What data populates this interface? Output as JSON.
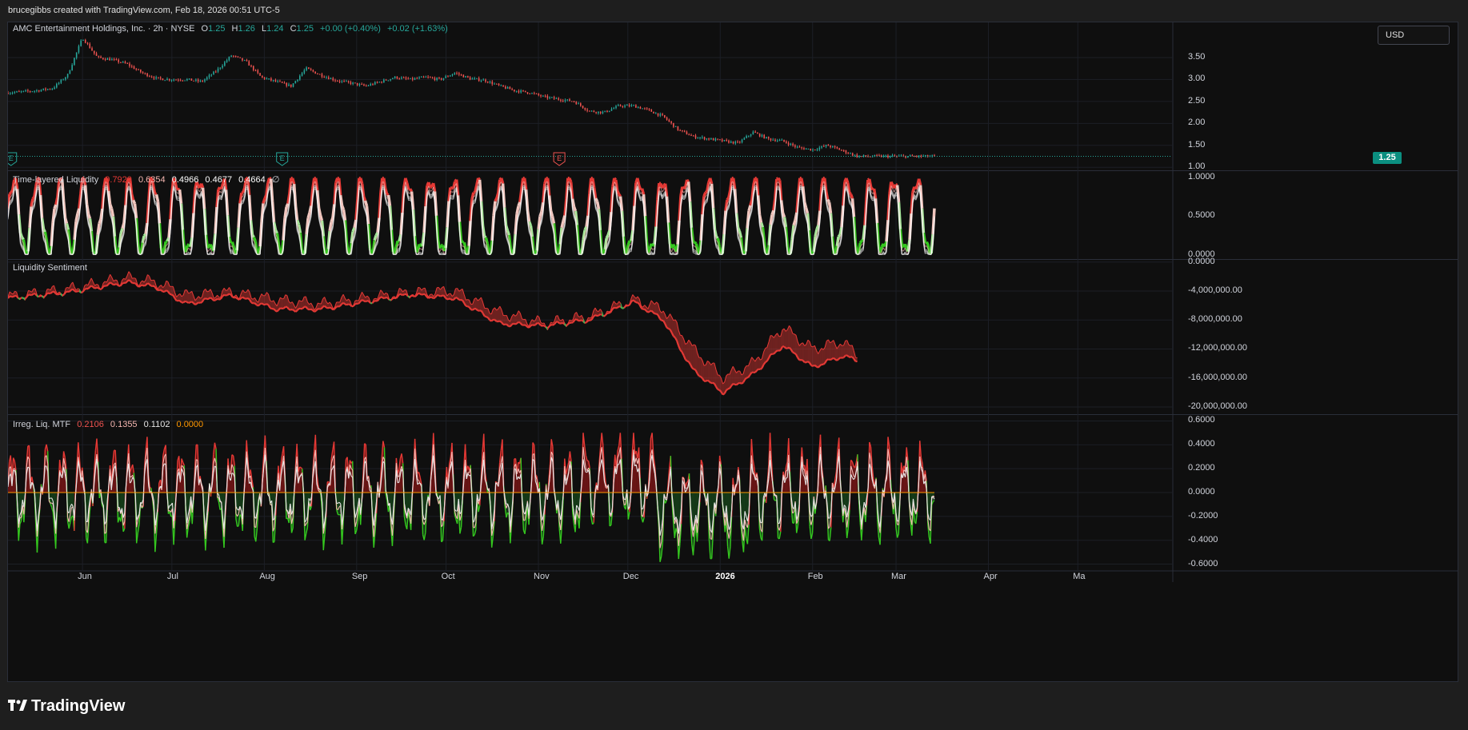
{
  "header": {
    "created_by": "brucegibbs created with TradingView.com, Feb 18, 2026 00:51 UTC-5"
  },
  "brand": {
    "logo_icon": "tradingview-logo-icon",
    "name": "TradingView"
  },
  "currency": "USD",
  "last_price_label": "1.25",
  "colors": {
    "up": "#26a69a",
    "down": "#ef5350",
    "red": "#e53935",
    "green": "#4caf50",
    "brightgreen": "#35c81f",
    "pale": "#e6e6e6",
    "zero": "#ff9800",
    "yellow": "#ffeb3b"
  },
  "price_legend": {
    "symbol": "AMC Entertainment Holdings, Inc. · 2h · NYSE",
    "o_key": "O",
    "o_val": "1.25",
    "h_key": "H",
    "h_val": "1.26",
    "l_key": "L",
    "l_val": "1.24",
    "c_key": "C",
    "c_val": "1.25",
    "change": "+0.00 (+0.40%)",
    "change2": "+0.02 (+1.63%)"
  },
  "tl_legend": {
    "name": "Time-layered Liquidity",
    "v1": "0.7920",
    "v2": "0.6354",
    "v3": "0.4966",
    "v4": "0.4677",
    "v5": "0.4664",
    "v6": "∅"
  },
  "ls_legend": {
    "name": "Liquidity Sentiment"
  },
  "ir_legend": {
    "name": "Irreg. Liq. MTF",
    "v1": "0.2106",
    "v2": "0.1355",
    "v3": "0.1102",
    "v4": "0.0000"
  },
  "earnings_markers": [
    "E",
    "E",
    "E"
  ],
  "chart_data": [
    {
      "type": "candlestick",
      "title": "AMC Entertainment Holdings, Inc. · 2h · NYSE",
      "x_ticks": [
        "Jun",
        "Jul",
        "Aug",
        "Sep",
        "Oct",
        "Nov",
        "Dec",
        "2026",
        "Feb",
        "Mar",
        "Apr",
        "Ma"
      ],
      "y_ticks": [
        "3.50",
        "3.00",
        "2.50",
        "2.00",
        "1.50",
        "1.00"
      ],
      "ylim": [
        0.95,
        4.3
      ],
      "x": [
        "2025-05-07",
        "2025-05-12",
        "2025-05-17",
        "2025-05-22",
        "2025-05-27",
        "2025-06-01",
        "2025-06-06",
        "2025-06-11",
        "2025-06-16",
        "2025-06-21",
        "2025-06-26",
        "2025-07-01",
        "2025-07-06",
        "2025-07-11",
        "2025-07-16",
        "2025-07-21",
        "2025-07-26",
        "2025-07-31",
        "2025-08-05",
        "2025-08-10",
        "2025-08-15",
        "2025-08-20",
        "2025-08-25",
        "2025-08-30",
        "2025-09-04",
        "2025-09-09",
        "2025-09-14",
        "2025-09-19",
        "2025-09-24",
        "2025-09-29",
        "2025-10-04",
        "2025-10-09",
        "2025-10-14",
        "2025-10-19",
        "2025-10-24",
        "2025-10-29",
        "2025-11-03",
        "2025-11-08",
        "2025-11-13",
        "2025-11-18",
        "2025-11-23",
        "2025-11-28",
        "2025-12-03",
        "2025-12-08",
        "2025-12-13",
        "2025-12-18",
        "2025-12-23",
        "2025-12-28",
        "2026-01-02",
        "2026-01-07",
        "2026-01-12",
        "2026-01-17",
        "2026-01-22",
        "2026-01-27",
        "2026-02-01",
        "2026-02-06",
        "2026-02-11",
        "2026-02-16"
      ],
      "close": [
        2.7,
        2.72,
        2.75,
        2.8,
        3.1,
        3.95,
        3.5,
        3.45,
        3.35,
        3.15,
        3.02,
        3.0,
        3.0,
        2.95,
        3.2,
        3.55,
        3.4,
        3.05,
        2.95,
        2.85,
        3.25,
        3.1,
        2.98,
        2.92,
        2.85,
        2.95,
        3.05,
        3.0,
        3.05,
        3.0,
        3.15,
        3.02,
        2.98,
        2.85,
        2.75,
        2.7,
        2.6,
        2.55,
        2.5,
        2.28,
        2.25,
        2.4,
        2.4,
        2.3,
        2.15,
        1.85,
        1.7,
        1.65,
        1.6,
        1.55,
        1.8,
        1.65,
        1.6,
        1.45,
        1.4,
        1.5,
        1.38,
        1.25
      ],
      "last": 1.25
    },
    {
      "type": "line",
      "title": "Time-layered Liquidity",
      "y_ticks": [
        "1.0000",
        "0.5000",
        "0.0000"
      ],
      "ylim": [
        0,
        1
      ],
      "series": [
        {
          "name": "0.7920",
          "last": 0.792
        },
        {
          "name": "0.6354",
          "last": 0.6354
        },
        {
          "name": "0.4966",
          "last": 0.4966
        },
        {
          "name": "0.4677",
          "last": 0.4677
        },
        {
          "name": "0.4664",
          "last": 0.4664
        }
      ],
      "oscillation_cycles": 40
    },
    {
      "type": "area",
      "title": "Liquidity Sentiment",
      "y_ticks": [
        "0.0000",
        "-4,000,000.00",
        "-8,000,000.00",
        "-12,000,000.00",
        "-16,000,000.00",
        "-20,000,000.00"
      ],
      "ylim": [
        -21000000,
        0
      ],
      "x": [
        "2025-05-07",
        "2025-05-27",
        "2025-06-16",
        "2025-06-26",
        "2025-07-06",
        "2025-07-21",
        "2025-08-05",
        "2025-08-20",
        "2025-09-04",
        "2025-09-19",
        "2025-10-04",
        "2025-10-19",
        "2025-11-03",
        "2025-11-18",
        "2025-12-03",
        "2025-12-13",
        "2025-12-23",
        "2026-01-02",
        "2026-01-12",
        "2026-01-22",
        "2026-02-01",
        "2026-02-11",
        "2026-02-16"
      ],
      "series": [
        {
          "values": [
            -4.8,
            -3.8,
            -2.2,
            -2.8,
            -4.6,
            -4.2,
            -5.2,
            -5.8,
            -5.0,
            -4.2,
            -4.0,
            -7.0,
            -8.5,
            -7.5,
            -5.2,
            -6.5,
            -12.0,
            -16.0,
            -14.0,
            -9.0,
            -12.0,
            -11.0,
            -12.7
          ]
        },
        {
          "values": [
            -5.0,
            -4.2,
            -2.8,
            -3.5,
            -5.8,
            -4.6,
            -6.5,
            -6.5,
            -5.5,
            -4.5,
            -5.0,
            -8.5,
            -8.8,
            -8.0,
            -5.5,
            -8.0,
            -15.0,
            -18.0,
            -15.5,
            -11.5,
            -14.5,
            -13.0,
            -13.5
          ]
        }
      ]
    },
    {
      "type": "area",
      "title": "Irreg. Liq. MTF",
      "y_ticks": [
        "0.6000",
        "0.4000",
        "0.2000",
        "0.0000",
        "-0.2000",
        "-0.4000",
        "-0.6000"
      ],
      "ylim": [
        -0.65,
        0.65
      ],
      "series": [
        {
          "name": "0.2106",
          "last": 0.2106
        },
        {
          "name": "0.1355",
          "last": 0.1355
        },
        {
          "name": "0.1102",
          "last": 0.1102
        },
        {
          "name": "0.0000",
          "last": 0.0
        }
      ],
      "oscillation_cycles": 55
    }
  ]
}
